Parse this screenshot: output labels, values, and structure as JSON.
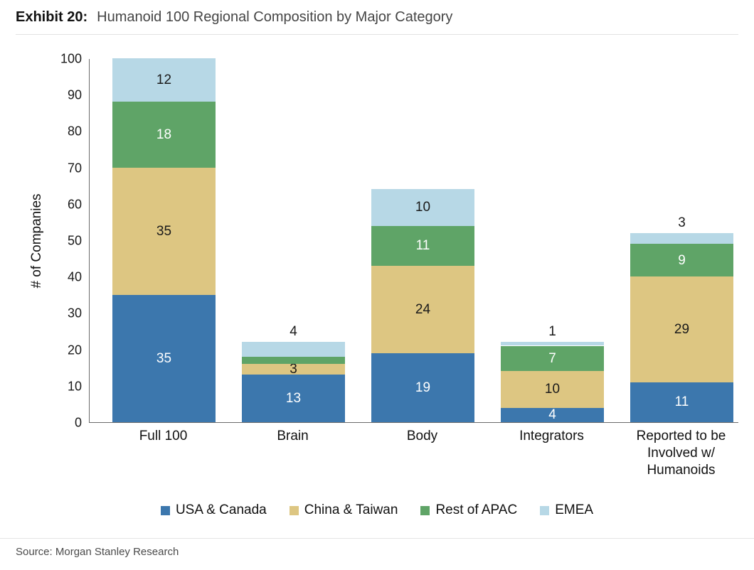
{
  "header": {
    "exhibit": "Exhibit 20:",
    "title": "Humanoid 100 Regional Composition by Major Category"
  },
  "source": "Source: Morgan Stanley Research",
  "chart_data": {
    "type": "bar",
    "stacked": true,
    "title": "Humanoid 100 Regional Composition by Major Category",
    "xlabel": "",
    "ylabel": "# of Companies",
    "ylim": [
      0,
      100
    ],
    "ytick_step": 10,
    "grid": false,
    "legend_position": "bottom",
    "categories": [
      "Full 100",
      "Brain",
      "Body",
      "Integrators",
      "Reported to be Involved w/ Humanoids"
    ],
    "totals": [
      100,
      22,
      64,
      22,
      52
    ],
    "series": [
      {
        "name": "USA & Canada",
        "color": "#3c77ad",
        "label_color": "#ffffff",
        "values": [
          35,
          13,
          19,
          4,
          11
        ]
      },
      {
        "name": "China & Taiwan",
        "color": "#ddc682",
        "label_color": "#1a1a1a",
        "values": [
          35,
          3,
          24,
          10,
          29
        ]
      },
      {
        "name": "Rest of APAC",
        "color": "#5fa467",
        "label_color": "#ffffff",
        "values": [
          18,
          2,
          11,
          7,
          9
        ],
        "overrides": {
          "1": {
            "color": "#1a1a1a",
            "shift": -14
          }
        }
      },
      {
        "name": "EMEA",
        "color": "#b7d8e6",
        "label_color": "#1a1a1a",
        "values": [
          12,
          4,
          10,
          1,
          3
        ],
        "label_outside_at": [
          1,
          3,
          4
        ]
      }
    ]
  }
}
